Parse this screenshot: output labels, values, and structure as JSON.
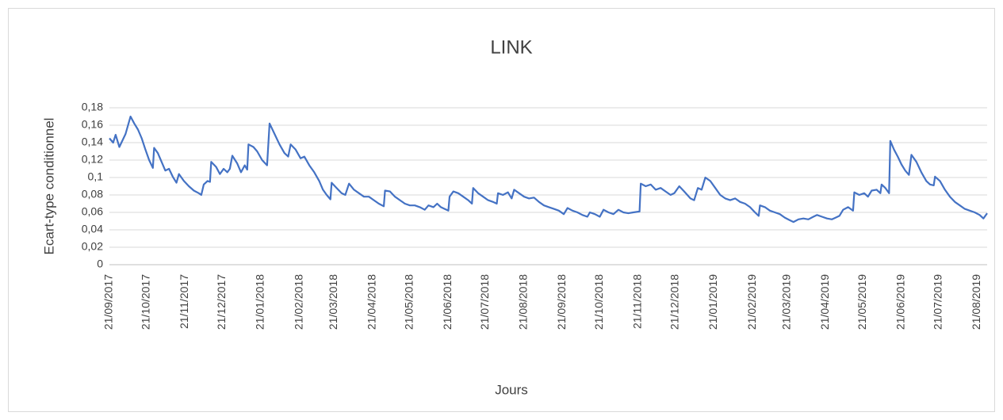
{
  "chart_data": {
    "type": "line",
    "title": "LINK",
    "x_label": "Jours",
    "y_label": "Ecart-type conditionnel",
    "x": [
      "21/09/2017",
      "24/09/2017",
      "26/09/2017",
      "29/09/2017",
      "04/10/2017",
      "08/10/2017",
      "11/10/2017",
      "14/10/2017",
      "17/10/2017",
      "20/10/2017",
      "23/10/2017",
      "26/10/2017",
      "27/10/2017",
      "30/10/2017",
      "02/11/2017",
      "05/11/2017",
      "08/11/2017",
      "11/11/2017",
      "14/11/2017",
      "16/11/2017",
      "20/11/2017",
      "24/11/2017",
      "28/11/2017",
      "02/12/2017",
      "04/12/2017",
      "06/12/2017",
      "09/12/2017",
      "11/12/2017",
      "12/12/2017",
      "16/12/2017",
      "19/12/2017",
      "22/12/2017",
      "25/12/2017",
      "27/12/2017",
      "29/12/2017",
      "02/01/2018",
      "05/01/2018",
      "08/01/2018",
      "10/01/2018",
      "11/01/2018",
      "15/01/2018",
      "18/01/2018",
      "22/01/2018",
      "26/01/2018",
      "28/01/2018",
      "01/02/2018",
      "05/02/2018",
      "09/02/2018",
      "12/02/2018",
      "14/02/2018",
      "18/02/2018",
      "22/02/2018",
      "25/02/2018",
      "01/03/2018",
      "05/03/2018",
      "09/03/2018",
      "12/03/2018",
      "15/03/2018",
      "18/03/2018",
      "19/03/2018",
      "23/03/2018",
      "27/03/2018",
      "30/03/2018",
      "02/04/2018",
      "06/04/2018",
      "10/04/2018",
      "14/04/2018",
      "18/04/2018",
      "22/04/2018",
      "26/04/2018",
      "30/04/2018",
      "01/05/2018",
      "05/05/2018",
      "09/05/2018",
      "13/05/2018",
      "17/05/2018",
      "21/05/2018",
      "25/05/2018",
      "29/05/2018",
      "02/06/2018",
      "05/06/2018",
      "09/06/2018",
      "12/06/2018",
      "15/06/2018",
      "18/06/2018",
      "21/06/2018",
      "22/06/2018",
      "25/06/2018",
      "29/06/2018",
      "03/07/2018",
      "07/07/2018",
      "10/07/2018",
      "11/07/2018",
      "15/07/2018",
      "19/07/2018",
      "23/07/2018",
      "27/07/2018",
      "30/07/2018",
      "31/07/2018",
      "04/08/2018",
      "08/08/2018",
      "11/08/2018",
      "13/08/2018",
      "17/08/2018",
      "21/08/2018",
      "25/08/2018",
      "29/08/2018",
      "02/09/2018",
      "06/09/2018",
      "10/09/2018",
      "14/09/2018",
      "18/09/2018",
      "22/09/2018",
      "25/09/2018",
      "29/09/2018",
      "03/10/2018",
      "07/10/2018",
      "11/10/2018",
      "13/10/2018",
      "17/10/2018",
      "21/10/2018",
      "24/10/2018",
      "28/10/2018",
      "01/11/2018",
      "05/11/2018",
      "09/11/2018",
      "13/11/2018",
      "17/11/2018",
      "22/11/2018",
      "23/11/2018",
      "27/11/2018",
      "01/12/2018",
      "05/12/2018",
      "09/12/2018",
      "13/12/2018",
      "17/12/2018",
      "20/12/2018",
      "24/12/2018",
      "28/12/2018",
      "02/01/2019",
      "05/01/2019",
      "08/01/2019",
      "11/01/2019",
      "14/01/2019",
      "18/01/2019",
      "22/01/2019",
      "26/01/2019",
      "30/01/2019",
      "03/02/2019",
      "07/02/2019",
      "11/02/2019",
      "15/02/2019",
      "19/02/2019",
      "23/02/2019",
      "26/02/2019",
      "27/02/2019",
      "03/03/2019",
      "07/03/2019",
      "11/03/2019",
      "15/03/2019",
      "19/03/2019",
      "23/03/2019",
      "26/03/2019",
      "30/03/2019",
      "03/04/2019",
      "07/04/2019",
      "11/04/2019",
      "14/04/2019",
      "18/04/2019",
      "22/04/2019",
      "26/04/2019",
      "29/04/2019",
      "02/05/2019",
      "05/05/2019",
      "09/05/2019",
      "13/05/2019",
      "14/05/2019",
      "18/05/2019",
      "22/05/2019",
      "25/05/2019",
      "28/05/2019",
      "01/06/2019",
      "04/06/2019",
      "05/06/2019",
      "08/06/2019",
      "11/06/2019",
      "12/06/2019",
      "15/06/2019",
      "18/06/2019",
      "21/06/2019",
      "24/06/2019",
      "27/06/2019",
      "29/06/2019",
      "03/07/2019",
      "07/07/2019",
      "11/07/2019",
      "14/07/2019",
      "17/07/2019",
      "18/07/2019",
      "22/07/2019",
      "26/07/2019",
      "30/07/2019",
      "03/08/2019",
      "07/08/2019",
      "11/08/2019",
      "15/08/2019",
      "19/08/2019",
      "23/08/2019",
      "26/08/2019",
      "29/08/2019"
    ],
    "series": [
      {
        "color": "#4472c4",
        "values": [
          0.145,
          0.14,
          0.149,
          0.135,
          0.15,
          0.17,
          0.162,
          0.155,
          0.145,
          0.132,
          0.12,
          0.111,
          0.134,
          0.128,
          0.118,
          0.108,
          0.11,
          0.101,
          0.094,
          0.104,
          0.096,
          0.09,
          0.085,
          0.082,
          0.08,
          0.092,
          0.096,
          0.095,
          0.118,
          0.112,
          0.104,
          0.11,
          0.106,
          0.11,
          0.125,
          0.116,
          0.106,
          0.114,
          0.109,
          0.138,
          0.135,
          0.13,
          0.12,
          0.114,
          0.162,
          0.15,
          0.138,
          0.128,
          0.124,
          0.138,
          0.132,
          0.122,
          0.124,
          0.114,
          0.106,
          0.096,
          0.086,
          0.08,
          0.075,
          0.094,
          0.088,
          0.082,
          0.08,
          0.093,
          0.086,
          0.082,
          0.078,
          0.078,
          0.074,
          0.07,
          0.067,
          0.085,
          0.084,
          0.078,
          0.074,
          0.07,
          0.068,
          0.068,
          0.066,
          0.063,
          0.068,
          0.066,
          0.07,
          0.066,
          0.064,
          0.062,
          0.078,
          0.084,
          0.082,
          0.078,
          0.074,
          0.07,
          0.088,
          0.082,
          0.078,
          0.074,
          0.072,
          0.07,
          0.082,
          0.08,
          0.083,
          0.076,
          0.086,
          0.082,
          0.078,
          0.076,
          0.077,
          0.072,
          0.068,
          0.066,
          0.064,
          0.062,
          0.058,
          0.065,
          0.062,
          0.06,
          0.057,
          0.055,
          0.06,
          0.058,
          0.055,
          0.063,
          0.06,
          0.058,
          0.063,
          0.06,
          0.059,
          0.06,
          0.061,
          0.093,
          0.09,
          0.092,
          0.086,
          0.088,
          0.084,
          0.08,
          0.082,
          0.09,
          0.084,
          0.076,
          0.074,
          0.088,
          0.086,
          0.1,
          0.096,
          0.088,
          0.08,
          0.076,
          0.074,
          0.076,
          0.072,
          0.07,
          0.066,
          0.06,
          0.056,
          0.068,
          0.066,
          0.062,
          0.06,
          0.058,
          0.054,
          0.051,
          0.049,
          0.052,
          0.053,
          0.052,
          0.055,
          0.057,
          0.055,
          0.053,
          0.052,
          0.054,
          0.056,
          0.063,
          0.066,
          0.062,
          0.083,
          0.08,
          0.082,
          0.078,
          0.085,
          0.086,
          0.082,
          0.092,
          0.088,
          0.082,
          0.142,
          0.132,
          0.124,
          0.115,
          0.108,
          0.103,
          0.126,
          0.118,
          0.106,
          0.096,
          0.092,
          0.091,
          0.101,
          0.096,
          0.086,
          0.078,
          0.072,
          0.068,
          0.064,
          0.062,
          0.06,
          0.057,
          0.053,
          0.059
        ]
      }
    ],
    "xlim": [
      "21/09/2017",
      "29/08/2019"
    ],
    "xticks": [
      "21/09/2017",
      "21/10/2017",
      "21/11/2017",
      "21/12/2017",
      "21/01/2018",
      "21/02/2018",
      "21/03/2018",
      "21/04/2018",
      "21/05/2018",
      "21/06/2018",
      "21/07/2018",
      "21/08/2018",
      "21/09/2018",
      "21/10/2018",
      "21/11/2018",
      "21/12/2018",
      "21/01/2019",
      "21/02/2019",
      "21/03/2019",
      "21/04/2019",
      "21/05/2019",
      "21/06/2019",
      "21/07/2019",
      "21/08/2019"
    ],
    "ylim": [
      0,
      0.18
    ],
    "yticks": [
      0,
      {
        "value": 0.02,
        "label": "0,02"
      },
      {
        "value": 0.04,
        "label": "0,04"
      },
      {
        "value": 0.06,
        "label": "0,06"
      },
      {
        "value": 0.08,
        "label": "0,08"
      },
      {
        "value": 0.1,
        "label": "0,1"
      },
      {
        "value": 0.12,
        "label": "0,12"
      },
      {
        "value": 0.14,
        "label": "0,14"
      },
      {
        "value": 0.16,
        "label": "0,16"
      },
      {
        "value": 0.18,
        "label": "0,18"
      }
    ],
    "grid": true
  }
}
